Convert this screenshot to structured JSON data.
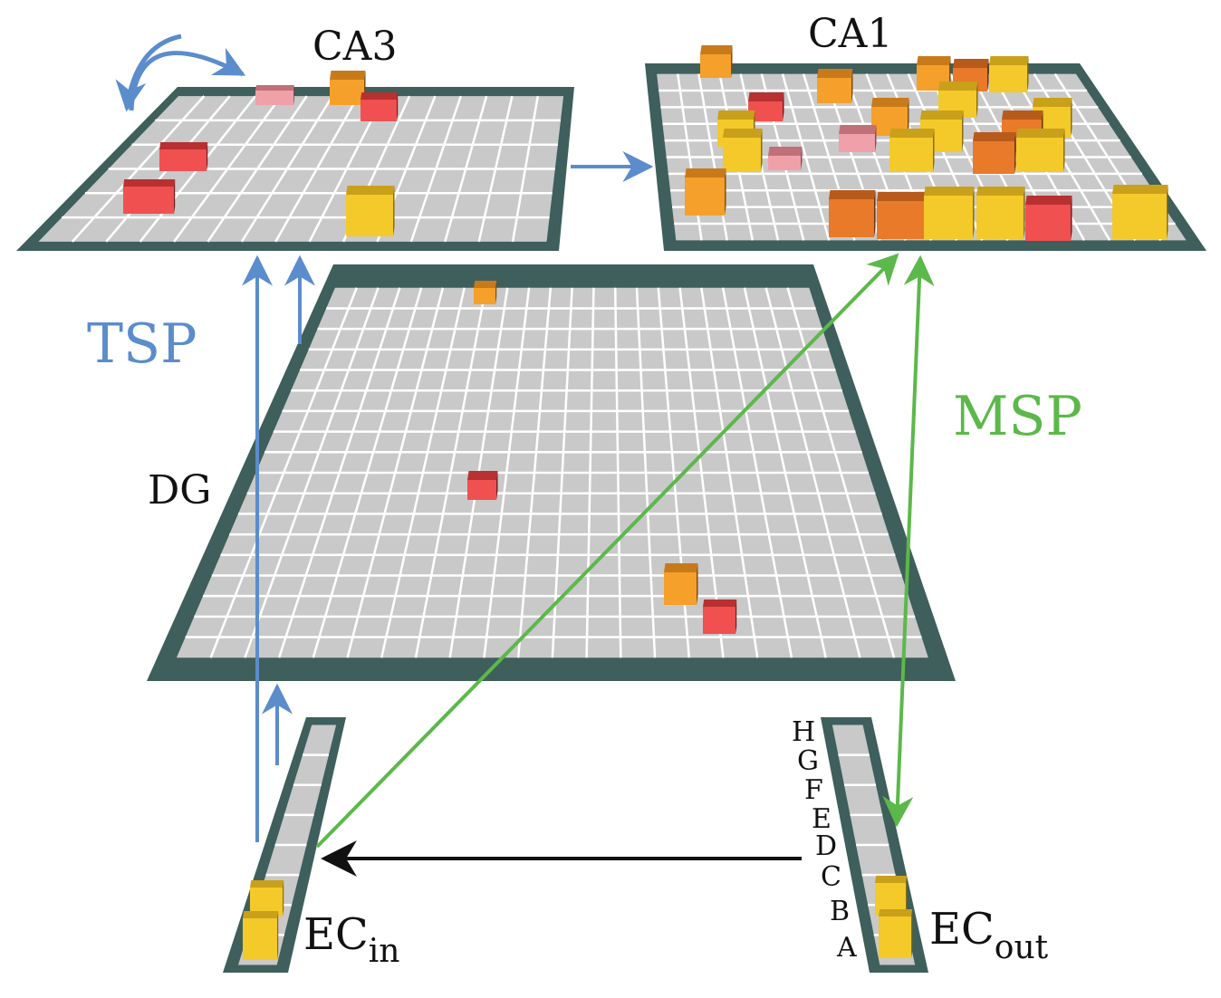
{
  "labels": {
    "ca3": "CA3",
    "ca1": "CA1",
    "dg": "DG",
    "tsp": "TSP",
    "msp": "MSP",
    "ec_in_main": "EC",
    "ec_in_sub": "in",
    "ec_out_main": "EC",
    "ec_out_sub": "out"
  },
  "ec_out_letters": [
    "H",
    "G",
    "F",
    "E",
    "D",
    "C",
    "B",
    "A"
  ],
  "colors": {
    "tsp_blue": "#5b8ccc",
    "msp_green": "#5cb84a",
    "black_arrow": "#111111",
    "panel_border": "#3e5f5b",
    "grid_cell": "#c9c9c9",
    "grid_line": "#ffffff"
  }
}
